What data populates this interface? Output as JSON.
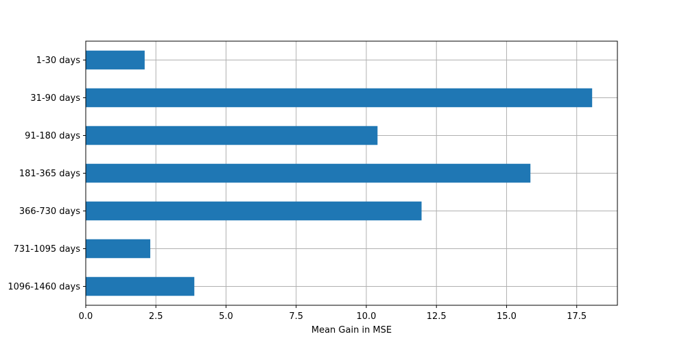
{
  "chart_data": {
    "type": "bar",
    "orientation": "horizontal",
    "categories": [
      "1-30 days",
      "31-90 days",
      "91-180 days",
      "181-365 days",
      "366-730 days",
      "731-1095 days",
      "1096-1460 days"
    ],
    "values": [
      2.1,
      18.05,
      10.4,
      15.85,
      11.97,
      2.3,
      3.87
    ],
    "title": "",
    "xlabel": "Mean Gain in MSE",
    "ylabel": "",
    "xlim": [
      0,
      18.95
    ],
    "xticks": [
      0.0,
      2.5,
      5.0,
      7.5,
      10.0,
      12.5,
      15.0,
      17.5
    ],
    "xtick_labels": [
      "0.0",
      "2.5",
      "5.0",
      "7.5",
      "10.0",
      "12.5",
      "15.0",
      "17.5"
    ],
    "grid": true,
    "bar_color": "#1f77b4",
    "grid_color": "#b0b0b0"
  }
}
